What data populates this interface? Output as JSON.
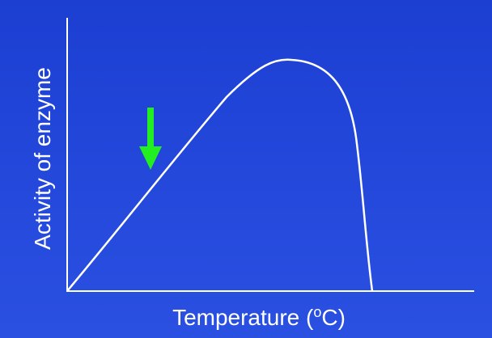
{
  "y_axis_label": "Activity of enzyme",
  "x_axis_label": {
    "before": "Temperature (",
    "superscript": "o",
    "after": "C)"
  }
}
